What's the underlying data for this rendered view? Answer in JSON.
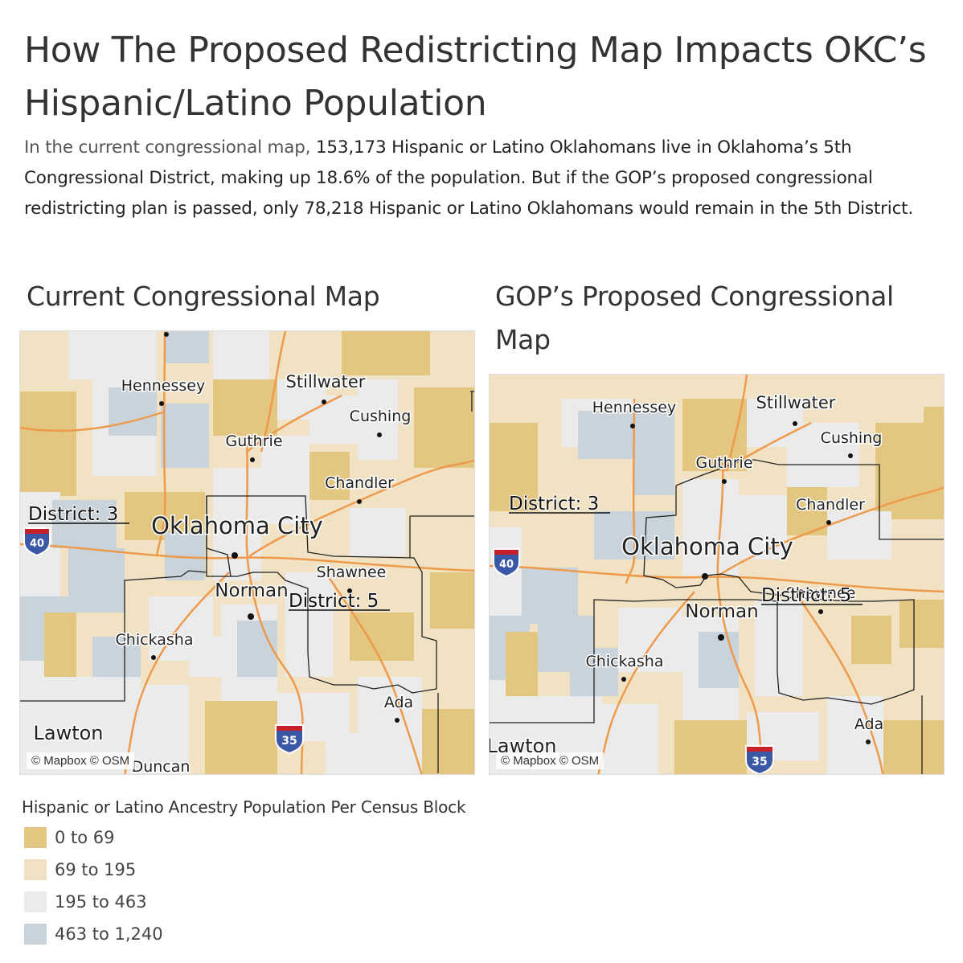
{
  "title": "How The Proposed Redistricting Map Impacts OKC’s Hispanic/Latino Population",
  "intro": {
    "lead": "In the current congressional map,",
    "body": " 153,173 Hispanic or Latino Oklahomans live in Oklahoma’s 5th Congressional District, making up 18.6% of the population. But if the GOP’s proposed congressional redistricting plan is passed, only 78,218 Hispanic or Latino Oklahomans would remain in the 5th District."
  },
  "maps": {
    "current": {
      "title": "Current Congressional Map",
      "attribution": "© Mapbox © OSM",
      "cities": {
        "hennessey": "Hennessey",
        "stillwater": "Stillwater",
        "cushing": "Cushing",
        "guthrie": "Guthrie",
        "chandler": "Chandler",
        "okc": "Oklahoma City",
        "shawnee": "Shawnee",
        "norman": "Norman",
        "chickasha": "Chickasha",
        "ada": "Ada",
        "lawton": "Lawton",
        "duncan": "Duncan"
      },
      "districts": {
        "d3": "District: 3",
        "d5": "District: 5"
      },
      "shields": {
        "i40": "40",
        "i35": "35"
      }
    },
    "proposed": {
      "title": "GOP’s Proposed Congressional Map",
      "attribution": "© Mapbox © OSM",
      "cities": {
        "hennessey": "Hennessey",
        "stillwater": "Stillwater",
        "cushing": "Cushing",
        "guthrie": "Guthrie",
        "chandler": "Chandler",
        "okc": "Oklahoma City",
        "shawnee": "Shawnee",
        "norman": "Norman",
        "chickasha": "Chickasha",
        "ada": "Ada",
        "lawton": "Lawton"
      },
      "districts": {
        "d3": "District: 3",
        "d5": "District: 5"
      },
      "shields": {
        "i40": "40",
        "i35": "35"
      }
    }
  },
  "legend": {
    "title": "Hispanic or Latino Ancestry Population Per Census Block",
    "items": [
      {
        "label": "0 to 69",
        "color": "#e3c67f"
      },
      {
        "label": "69 to 195",
        "color": "#f1e2c4"
      },
      {
        "label": "195 to 463",
        "color": "#ebebeb"
      },
      {
        "label": "463 to 1,240",
        "color": "#c9d3dc"
      }
    ]
  },
  "colors": {
    "road": "#ee9a4d",
    "boundary": "#222222",
    "shield_blue": "#3a58a6",
    "shield_red": "#c8202b"
  }
}
